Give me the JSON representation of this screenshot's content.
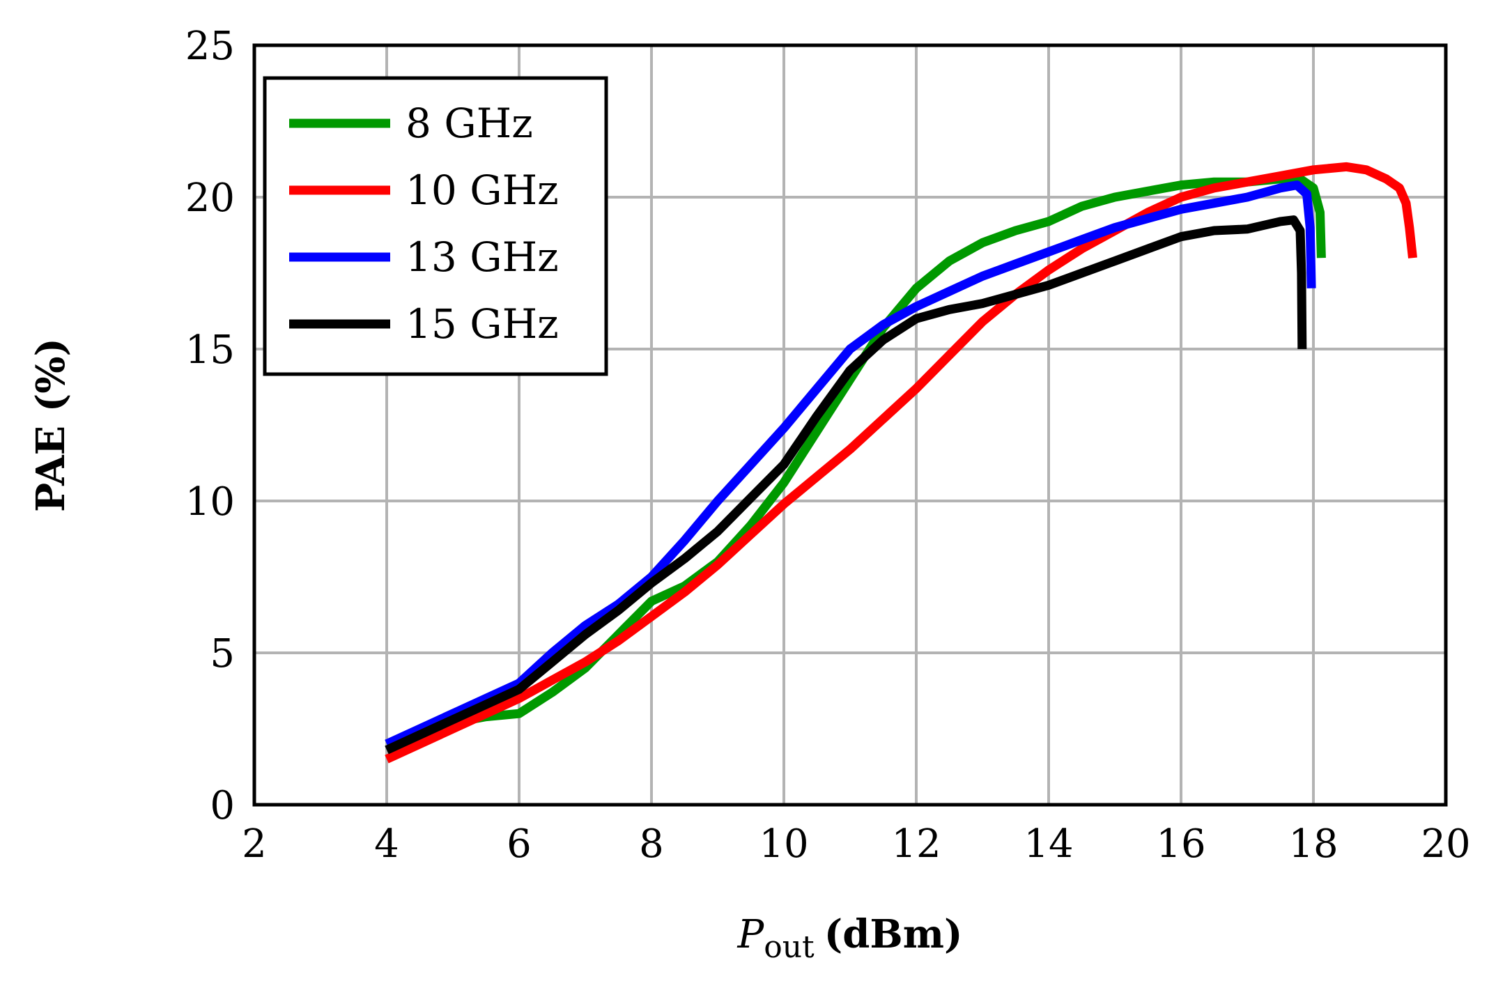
{
  "chart_data": {
    "type": "line",
    "title": "",
    "xlabel_italic": "P",
    "xlabel_sub": "out",
    "xlabel_unit": "(dBm)",
    "ylabel": "PAE (%)",
    "xlim": [
      2,
      20
    ],
    "ylim": [
      0,
      25
    ],
    "xticks": [
      2,
      4,
      6,
      8,
      10,
      12,
      14,
      16,
      18,
      20
    ],
    "yticks": [
      0,
      5,
      10,
      15,
      20,
      25
    ],
    "grid": true,
    "legend_position": "top-left",
    "series": [
      {
        "name": "8 GHz",
        "color": "#009900",
        "points": [
          [
            4,
            2.0
          ],
          [
            4.5,
            2.4
          ],
          [
            5,
            2.7
          ],
          [
            5.5,
            2.9
          ],
          [
            6,
            3.0
          ],
          [
            6.5,
            3.7
          ],
          [
            7,
            4.5
          ],
          [
            7.5,
            5.6
          ],
          [
            8,
            6.7
          ],
          [
            8.5,
            7.2
          ],
          [
            9,
            8.0
          ],
          [
            9.5,
            9.2
          ],
          [
            10,
            10.6
          ],
          [
            10.5,
            12.3
          ],
          [
            11,
            14.0
          ],
          [
            11.5,
            15.7
          ],
          [
            12,
            17.0
          ],
          [
            12.5,
            17.9
          ],
          [
            13,
            18.5
          ],
          [
            13.5,
            18.9
          ],
          [
            14,
            19.2
          ],
          [
            14.5,
            19.7
          ],
          [
            15,
            20.0
          ],
          [
            15.5,
            20.2
          ],
          [
            16,
            20.4
          ],
          [
            16.5,
            20.5
          ],
          [
            17,
            20.5
          ],
          [
            17.5,
            20.6
          ],
          [
            17.8,
            20.6
          ],
          [
            18.0,
            20.3
          ],
          [
            18.1,
            19.5
          ],
          [
            18.12,
            18.0
          ]
        ]
      },
      {
        "name": "10 GHz",
        "color": "#ff0000",
        "points": [
          [
            4,
            1.5
          ],
          [
            4.5,
            2.0
          ],
          [
            5,
            2.5
          ],
          [
            5.5,
            3.0
          ],
          [
            6,
            3.5
          ],
          [
            6.5,
            4.1
          ],
          [
            7,
            4.7
          ],
          [
            7.5,
            5.4
          ],
          [
            8,
            6.2
          ],
          [
            8.5,
            7.0
          ],
          [
            9,
            7.9
          ],
          [
            9.5,
            8.9
          ],
          [
            10,
            9.9
          ],
          [
            10.5,
            10.8
          ],
          [
            11,
            11.7
          ],
          [
            11.5,
            12.7
          ],
          [
            12,
            13.7
          ],
          [
            12.5,
            14.8
          ],
          [
            13,
            15.9
          ],
          [
            13.5,
            16.8
          ],
          [
            14,
            17.6
          ],
          [
            14.5,
            18.3
          ],
          [
            15,
            18.9
          ],
          [
            15.5,
            19.5
          ],
          [
            16,
            20.0
          ],
          [
            16.5,
            20.3
          ],
          [
            17,
            20.5
          ],
          [
            17.5,
            20.7
          ],
          [
            18,
            20.9
          ],
          [
            18.5,
            21.0
          ],
          [
            18.8,
            20.9
          ],
          [
            19.1,
            20.6
          ],
          [
            19.3,
            20.3
          ],
          [
            19.4,
            19.8
          ],
          [
            19.45,
            19.0
          ],
          [
            19.5,
            18.0
          ]
        ]
      },
      {
        "name": "13 GHz",
        "color": "#0000ff",
        "points": [
          [
            4,
            2.0
          ],
          [
            4.5,
            2.5
          ],
          [
            5,
            3.0
          ],
          [
            5.5,
            3.5
          ],
          [
            6,
            4.0
          ],
          [
            6.5,
            5.0
          ],
          [
            7,
            5.9
          ],
          [
            7.5,
            6.6
          ],
          [
            8,
            7.5
          ],
          [
            8.5,
            8.7
          ],
          [
            9,
            10.0
          ],
          [
            9.5,
            11.2
          ],
          [
            10,
            12.4
          ],
          [
            10.5,
            13.7
          ],
          [
            11,
            15.0
          ],
          [
            11.5,
            15.8
          ],
          [
            12,
            16.4
          ],
          [
            12.5,
            16.9
          ],
          [
            13,
            17.4
          ],
          [
            13.5,
            17.8
          ],
          [
            14,
            18.2
          ],
          [
            14.5,
            18.6
          ],
          [
            15,
            19.0
          ],
          [
            15.5,
            19.3
          ],
          [
            16,
            19.6
          ],
          [
            16.5,
            19.8
          ],
          [
            17,
            20.0
          ],
          [
            17.5,
            20.3
          ],
          [
            17.75,
            20.4
          ],
          [
            17.9,
            20.1
          ],
          [
            17.95,
            19.0
          ],
          [
            17.97,
            17.0
          ]
        ]
      },
      {
        "name": "15 GHz",
        "color": "#000000",
        "points": [
          [
            4,
            1.8
          ],
          [
            4.5,
            2.3
          ],
          [
            5,
            2.8
          ],
          [
            5.5,
            3.3
          ],
          [
            6,
            3.8
          ],
          [
            6.5,
            4.7
          ],
          [
            7,
            5.6
          ],
          [
            7.5,
            6.4
          ],
          [
            8,
            7.3
          ],
          [
            8.5,
            8.1
          ],
          [
            9,
            9.0
          ],
          [
            9.5,
            10.1
          ],
          [
            10,
            11.2
          ],
          [
            10.5,
            12.8
          ],
          [
            11,
            14.3
          ],
          [
            11.5,
            15.3
          ],
          [
            12,
            16.0
          ],
          [
            12.5,
            16.3
          ],
          [
            13,
            16.5
          ],
          [
            13.5,
            16.8
          ],
          [
            14,
            17.1
          ],
          [
            14.5,
            17.5
          ],
          [
            15,
            17.9
          ],
          [
            15.5,
            18.3
          ],
          [
            16,
            18.7
          ],
          [
            16.5,
            18.9
          ],
          [
            17,
            18.95
          ],
          [
            17.5,
            19.2
          ],
          [
            17.7,
            19.25
          ],
          [
            17.8,
            18.9
          ],
          [
            17.82,
            17.5
          ],
          [
            17.83,
            15.0
          ]
        ]
      }
    ]
  }
}
